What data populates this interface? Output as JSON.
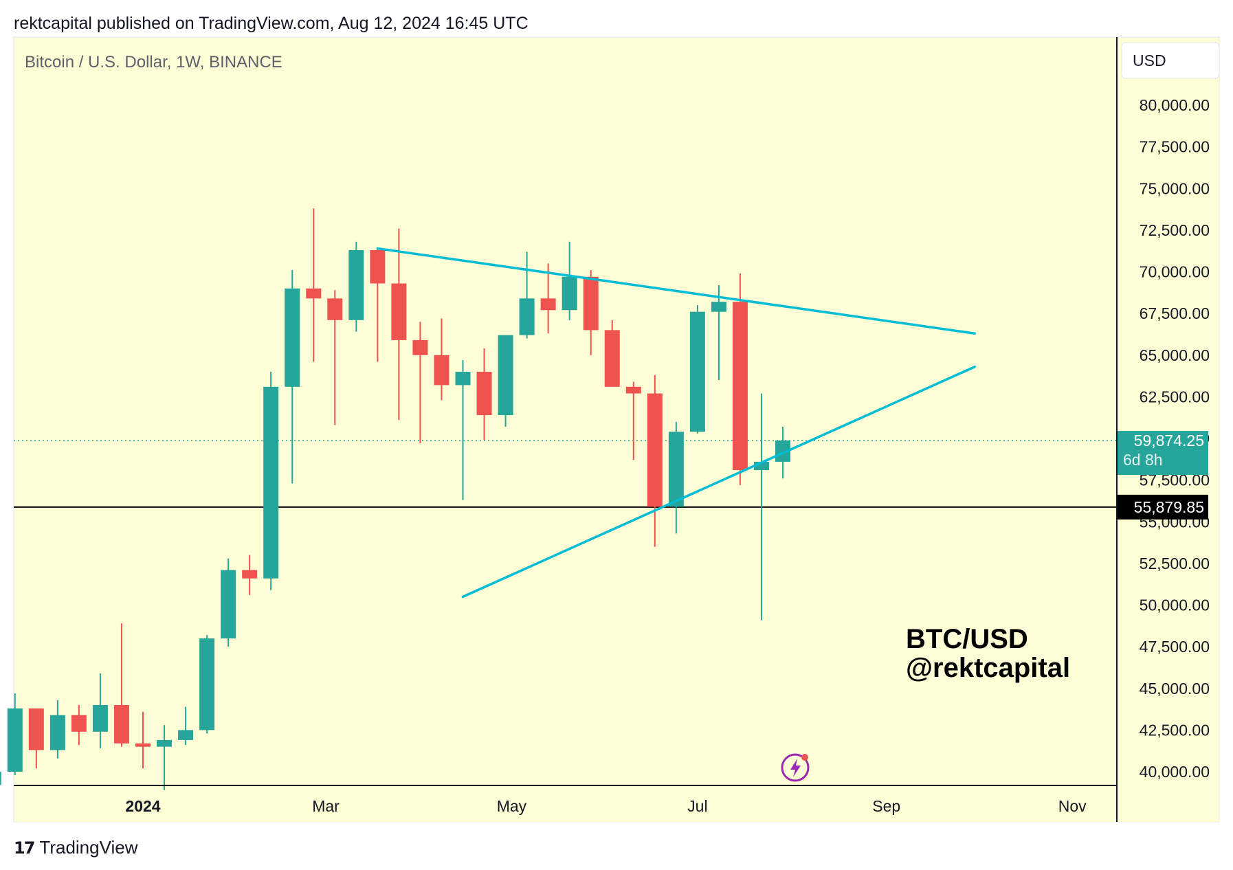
{
  "header": {
    "publish_line": "rektcapital published on TradingView.com, Aug 12, 2024 16:45 UTC"
  },
  "footer": {
    "brand_label": "TradingView",
    "logo_icon": "tradingview-logo-icon"
  },
  "colors": {
    "background": "#fdfdd6",
    "up_candle": "#26a69a",
    "down_candle": "#ef5350",
    "trendline": "#00bcd4",
    "support_line": "#000000",
    "last_price_label": "#26a69a",
    "support_price_label": "#000000"
  },
  "chart_data": {
    "type": "candlestick",
    "symbol_title": "Bitcoin / U.S. Dollar, 1W, BINANCE",
    "currency_button": "USD",
    "watermark": [
      "BTC/USD",
      "@rektcapital"
    ],
    "grid": false,
    "ylim": [
      38900,
      82500
    ],
    "y_ticks": [
      80000,
      77500,
      75000,
      72500,
      70000,
      67500,
      65000,
      62500,
      60000,
      57500,
      55000,
      52500,
      50000,
      47500,
      45000,
      42500,
      40000
    ],
    "y_tick_labels": [
      "80,000.00",
      "77,500.00",
      "75,000.00",
      "72,500.00",
      "70,000.00",
      "67,500.00",
      "65,000.00",
      "62,500.00",
      "60,000.00",
      "57,500.00",
      "55,000.00",
      "52,500.00",
      "50,000.00",
      "47,500.00",
      "45,000.00",
      "42,500.00",
      "40,000.00"
    ],
    "x_ticks": [
      {
        "label": "2024",
        "date": "2024-01-01",
        "bold": true
      },
      {
        "label": "Mar",
        "date": "2024-03-01",
        "bold": false
      },
      {
        "label": "May",
        "date": "2024-05-01",
        "bold": false
      },
      {
        "label": "Jul",
        "date": "2024-07-01",
        "bold": false
      },
      {
        "label": "Sep",
        "date": "2024-09-01",
        "bold": false
      },
      {
        "label": "Nov",
        "date": "2024-11-01",
        "bold": false
      }
    ],
    "candles": [
      {
        "date": "2023-11-13",
        "o": 39200,
        "h": 40200,
        "l": 38900,
        "c": 40000
      },
      {
        "date": "2023-11-20",
        "o": 40000,
        "h": 44700,
        "l": 39800,
        "c": 43800
      },
      {
        "date": "2023-11-27",
        "o": 43800,
        "h": 43800,
        "l": 40200,
        "c": 41300
      },
      {
        "date": "2023-12-04",
        "o": 41300,
        "h": 44300,
        "l": 40800,
        "c": 43400
      },
      {
        "date": "2023-12-11",
        "o": 43400,
        "h": 44000,
        "l": 41600,
        "c": 42400
      },
      {
        "date": "2023-12-18",
        "o": 42400,
        "h": 45900,
        "l": 41400,
        "c": 44000
      },
      {
        "date": "2023-12-25",
        "o": 44000,
        "h": 48900,
        "l": 41500,
        "c": 41700
      },
      {
        "date": "2024-01-01",
        "o": 41700,
        "h": 43600,
        "l": 40200,
        "c": 41500
      },
      {
        "date": "2024-01-08",
        "o": 41500,
        "h": 42800,
        "l": 38900,
        "c": 41900
      },
      {
        "date": "2024-01-15",
        "o": 41900,
        "h": 43900,
        "l": 41600,
        "c": 42500
      },
      {
        "date": "2024-01-22",
        "o": 42500,
        "h": 48200,
        "l": 42300,
        "c": 48000
      },
      {
        "date": "2024-01-29",
        "o": 48000,
        "h": 52800,
        "l": 47500,
        "c": 52100
      },
      {
        "date": "2024-02-05",
        "o": 52100,
        "h": 53000,
        "l": 50600,
        "c": 51600
      },
      {
        "date": "2024-02-12",
        "o": 51600,
        "h": 64000,
        "l": 50900,
        "c": 63100
      },
      {
        "date": "2024-02-19",
        "o": 63100,
        "h": 70100,
        "l": 57300,
        "c": 69000
      },
      {
        "date": "2024-02-26",
        "o": 69000,
        "h": 73800,
        "l": 64600,
        "c": 68400
      },
      {
        "date": "2024-03-04",
        "o": 68400,
        "h": 68900,
        "l": 60800,
        "c": 67100
      },
      {
        "date": "2024-03-11",
        "o": 67100,
        "h": 71800,
        "l": 66400,
        "c": 71300
      },
      {
        "date": "2024-03-18",
        "o": 71300,
        "h": 71400,
        "l": 64600,
        "c": 69300
      },
      {
        "date": "2024-03-25",
        "o": 69300,
        "h": 72600,
        "l": 61100,
        "c": 65900
      },
      {
        "date": "2024-04-01",
        "o": 65900,
        "h": 67000,
        "l": 59700,
        "c": 65000
      },
      {
        "date": "2024-04-08",
        "o": 65000,
        "h": 67200,
        "l": 62300,
        "c": 63200
      },
      {
        "date": "2024-04-15",
        "o": 63200,
        "h": 64700,
        "l": 56300,
        "c": 64000
      },
      {
        "date": "2024-04-22",
        "o": 64000,
        "h": 65400,
        "l": 59900,
        "c": 61400
      },
      {
        "date": "2024-04-29",
        "o": 61400,
        "h": 66100,
        "l": 60700,
        "c": 66200
      },
      {
        "date": "2024-05-06",
        "o": 66200,
        "h": 71200,
        "l": 66000,
        "c": 68400
      },
      {
        "date": "2024-05-13",
        "o": 68400,
        "h": 70500,
        "l": 66300,
        "c": 67700
      },
      {
        "date": "2024-05-20",
        "o": 67700,
        "h": 71800,
        "l": 67100,
        "c": 69700
      },
      {
        "date": "2024-05-27",
        "o": 69700,
        "h": 70100,
        "l": 65000,
        "c": 66500
      },
      {
        "date": "2024-06-03",
        "o": 66500,
        "h": 67100,
        "l": 63200,
        "c": 63100
      },
      {
        "date": "2024-06-10",
        "o": 63100,
        "h": 63400,
        "l": 58700,
        "c": 62700
      },
      {
        "date": "2024-06-17",
        "o": 62700,
        "h": 63800,
        "l": 53500,
        "c": 55900
      },
      {
        "date": "2024-06-24",
        "o": 55900,
        "h": 61000,
        "l": 54300,
        "c": 60400
      },
      {
        "date": "2024-07-01",
        "o": 60400,
        "h": 68000,
        "l": 60300,
        "c": 67600
      },
      {
        "date": "2024-07-08",
        "o": 67600,
        "h": 69200,
        "l": 63500,
        "c": 68200
      },
      {
        "date": "2024-07-15",
        "o": 68200,
        "h": 69900,
        "l": 57200,
        "c": 58100
      },
      {
        "date": "2024-07-22",
        "o": 58100,
        "h": 62700,
        "l": 49100,
        "c": 58600
      },
      {
        "date": "2024-07-29",
        "o": 58600,
        "h": 60700,
        "l": 57600,
        "c": 59874
      }
    ],
    "trendlines": [
      {
        "name": "upper",
        "start": {
          "date": "2024-03-18",
          "y": 71400
        },
        "end": {
          "date": "2024-09-30",
          "y": 66300
        }
      },
      {
        "name": "lower",
        "start": {
          "date": "2024-04-15",
          "y": 50500
        },
        "end": {
          "date": "2024-09-30",
          "y": 64300
        }
      }
    ],
    "support_level": {
      "value": 55879.85,
      "label": "55,879.85"
    },
    "last_price": {
      "value": 59874.25,
      "label": "59,874.25",
      "countdown": "6d 8h"
    }
  }
}
